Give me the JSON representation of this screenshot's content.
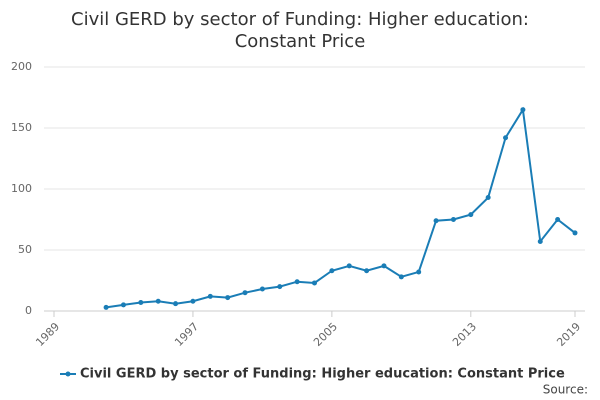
{
  "chart_data": {
    "type": "line",
    "title": "Civil GERD by sector of Funding: Higher education:",
    "subtitle": "Constant Price",
    "x": [
      1992,
      1993,
      1994,
      1995,
      1996,
      1997,
      1998,
      1999,
      2000,
      2001,
      2002,
      2003,
      2004,
      2005,
      2006,
      2007,
      2008,
      2009,
      2010,
      2011,
      2012,
      2013,
      2014,
      2015,
      2016,
      2017,
      2018,
      2019
    ],
    "series": [
      {
        "name": "Civil GERD by sector of Funding: Higher education: Constant Price",
        "color": "#1a7db6",
        "values": [
          3,
          5,
          7,
          8,
          6,
          8,
          12,
          11,
          15,
          18,
          20,
          24,
          23,
          33,
          37,
          33,
          37,
          28,
          32,
          74,
          75,
          79,
          93,
          142,
          165,
          57,
          75,
          64
        ]
      }
    ],
    "xlim": [
      1989,
      2019
    ],
    "xticks": [
      1989,
      1997,
      2005,
      2013,
      2019
    ],
    "ylim": [
      0,
      200
    ],
    "yticks": [
      0,
      50,
      100,
      150,
      200
    ],
    "grid": true,
    "source": "Source:"
  }
}
